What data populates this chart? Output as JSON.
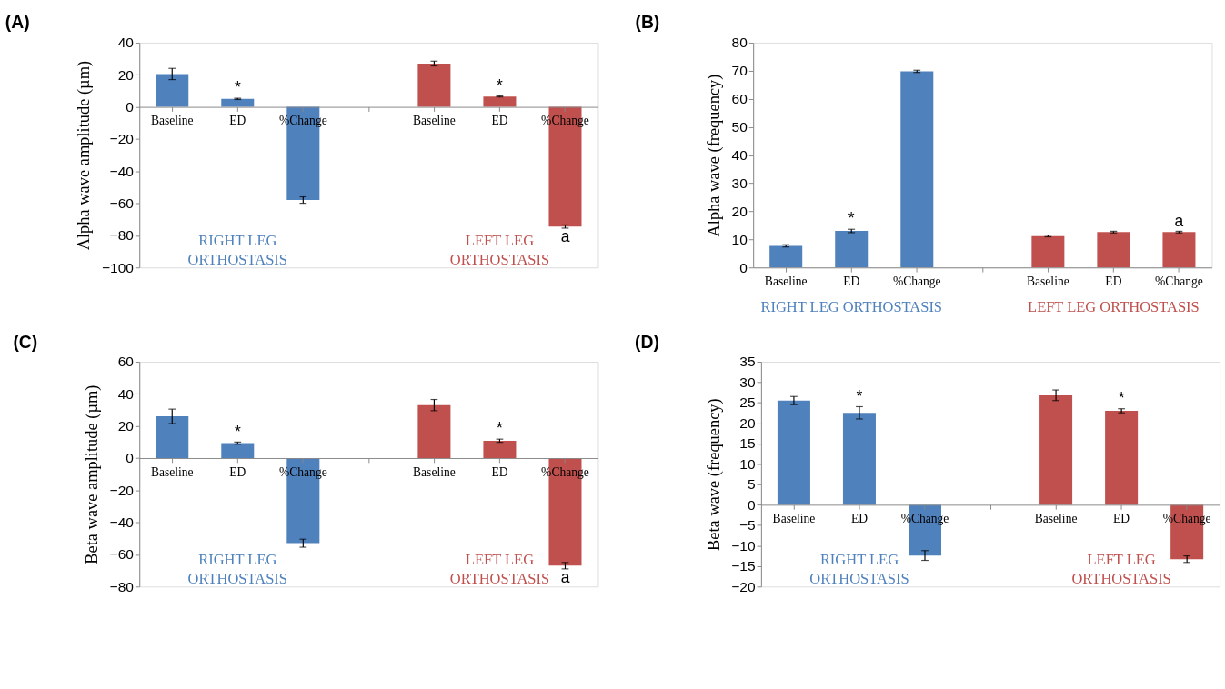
{
  "chart_data": [
    {
      "type": "bar",
      "title": "(A)",
      "ylabel": "Alpha wave amplitude (µm)",
      "categories": [
        "Baseline",
        "ED",
        "%Change",
        null,
        "Baseline",
        "ED",
        "%Change"
      ],
      "values": [
        20.5,
        5,
        -58,
        null,
        27,
        6.5,
        -74.5
      ],
      "errors": [
        3.5,
        0.4,
        2,
        null,
        1.5,
        0.3,
        1
      ],
      "colors": [
        "#4f81bd",
        "#4f81bd",
        "#4f81bd",
        "#4f81bd",
        "#c0504d",
        "#c0504d",
        "#c0504d"
      ],
      "ylim": [
        -100,
        40
      ],
      "yticks": [
        -100,
        -80,
        -60,
        -40,
        -20,
        0,
        20,
        40
      ],
      "grid": false,
      "value_labels": [
        null,
        "*",
        null,
        null,
        null,
        "*",
        "a"
      ],
      "annotations": [
        "RIGHT LEG ORTHOSTASIS",
        "LEFT LEG ORTHOSTASIS"
      ]
    },
    {
      "type": "bar",
      "title": "(B)",
      "ylabel": "Alpha wave (frequency)",
      "categories": [
        "Baseline",
        "ED",
        "%Change",
        null,
        "Baseline",
        "ED",
        "%Change"
      ],
      "values": [
        7.7,
        13,
        69.8,
        null,
        11.2,
        12.6,
        12.6
      ],
      "errors": [
        0.4,
        0.6,
        0.4,
        null,
        0.3,
        0.3,
        0.3
      ],
      "colors": [
        "#4f81bd",
        "#4f81bd",
        "#4f81bd",
        "#4f81bd",
        "#c0504d",
        "#c0504d",
        "#c0504d"
      ],
      "ylim": [
        0,
        80
      ],
      "yticks": [
        0,
        10,
        20,
        30,
        40,
        50,
        60,
        70,
        80
      ],
      "grid": false,
      "value_labels": [
        null,
        "*",
        null,
        null,
        null,
        null,
        "a"
      ],
      "annotations": [
        "RIGHT LEG ORTHOSTASIS",
        "LEFT LEG ORTHOSTASIS"
      ]
    },
    {
      "type": "bar",
      "title": "(C)",
      "ylabel": "Beta wave amplitude (µm)",
      "categories": [
        "Baseline",
        "ED",
        "%Change",
        null,
        "Baseline",
        "ED",
        "%Change"
      ],
      "values": [
        26,
        9.3,
        -53,
        null,
        33,
        10.8,
        -67
      ],
      "errors": [
        4.5,
        0.7,
        2.5,
        null,
        3.5,
        1,
        2
      ],
      "colors": [
        "#4f81bd",
        "#4f81bd",
        "#4f81bd",
        "#4f81bd",
        "#c0504d",
        "#c0504d",
        "#c0504d"
      ],
      "ylim": [
        -80,
        60
      ],
      "yticks": [
        -80,
        -60,
        -40,
        -20,
        0,
        20,
        40,
        60
      ],
      "grid": false,
      "value_labels": [
        null,
        "*",
        null,
        null,
        null,
        "*",
        "a"
      ],
      "annotations": [
        "RIGHT LEG ORTHOSTASIS",
        "LEFT LEG ORTHOSTASIS"
      ]
    },
    {
      "type": "bar",
      "title": "(D)",
      "ylabel": "Beta wave (frequency)",
      "categories": [
        "Baseline",
        "ED",
        "%Change",
        null,
        "Baseline",
        "ED",
        "%Change"
      ],
      "values": [
        25.5,
        22.5,
        -12.4,
        null,
        26.8,
        23,
        -13.3
      ],
      "errors": [
        1,
        1.5,
        1.2,
        null,
        1.3,
        0.5,
        0.8
      ],
      "colors": [
        "#4f81bd",
        "#4f81bd",
        "#4f81bd",
        "#4f81bd",
        "#c0504d",
        "#c0504d",
        "#c0504d"
      ],
      "ylim": [
        -20,
        35
      ],
      "yticks": [
        -20,
        -15,
        -10,
        -5,
        0,
        5,
        10,
        15,
        20,
        25,
        30,
        35
      ],
      "grid": false,
      "value_labels": [
        null,
        "*",
        null,
        null,
        null,
        "*",
        null
      ],
      "annotations": [
        "RIGHT LEG ORTHOSTASIS",
        "LEFT LEG ORTHOSTASIS"
      ]
    }
  ]
}
